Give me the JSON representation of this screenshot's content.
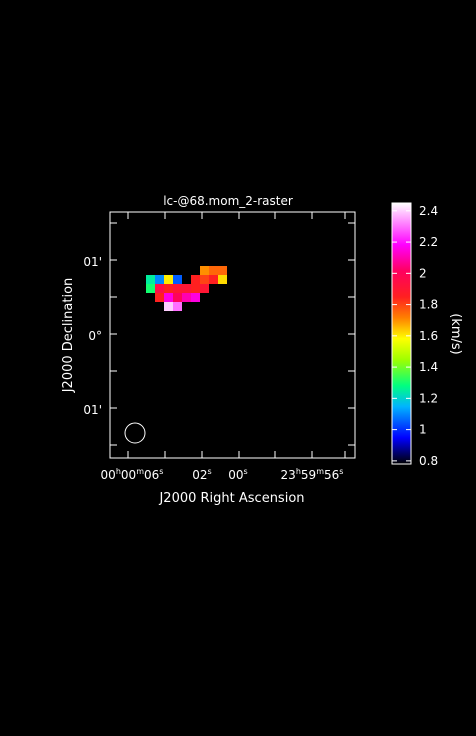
{
  "chart_data": {
    "type": "heatmap",
    "title": "lc-@68.mom_2-raster",
    "xlabel": "J2000 Right Ascension",
    "ylabel": "J2000 Declination",
    "xticks": [
      {
        "h": "00",
        "hu": "h",
        "m": "00",
        "mu": "m",
        "s": "06",
        "su": "s"
      },
      {
        "s": "02",
        "su": "s"
      },
      {
        "s": "00",
        "su": "s"
      },
      {
        "h": "23",
        "hu": "h",
        "m": "59",
        "mu": "m",
        "s": "56",
        "su": "s"
      }
    ],
    "yticks": [
      "01'",
      "0°",
      "01'"
    ],
    "colorbar": {
      "label": "(km/s)",
      "ticks": [
        "2.4",
        "2.2",
        "2",
        "1.8",
        "1.6",
        "1.4",
        "1.2",
        "1",
        "0.8"
      ],
      "range": [
        0.78,
        2.45
      ]
    },
    "pixels": [
      {
        "col": 0,
        "row": 0,
        "v": 1.25
      },
      {
        "col": 1,
        "row": 0,
        "v": 1.1
      },
      {
        "col": 2,
        "row": 0,
        "v": 1.6
      },
      {
        "col": 3,
        "row": 0,
        "v": 1.05
      },
      {
        "col": 0,
        "row": 1,
        "v": 1.3
      },
      {
        "col": 1,
        "row": 1,
        "v": 1.95
      },
      {
        "col": 2,
        "row": 1,
        "v": 1.85
      },
      {
        "col": 3,
        "row": 1,
        "v": 1.9
      },
      {
        "col": 4,
        "row": 1,
        "v": 1.9
      },
      {
        "col": 5,
        "row": 1,
        "v": 1.85
      },
      {
        "col": 6,
        "row": 1,
        "v": 1.9
      },
      {
        "col": 1,
        "row": 2,
        "v": 1.85
      },
      {
        "col": 2,
        "row": 2,
        "v": 2.15
      },
      {
        "col": 3,
        "row": 2,
        "v": 2.0
      },
      {
        "col": 4,
        "row": 2,
        "v": 2.1
      },
      {
        "col": 5,
        "row": 2,
        "v": 2.15
      },
      {
        "col": 2,
        "row": 3,
        "v": 2.4
      },
      {
        "col": 3,
        "row": 3,
        "v": 2.3
      },
      {
        "col": 5,
        "row": 0,
        "v": 1.85
      },
      {
        "col": 6,
        "row": 0,
        "v": 1.8
      },
      {
        "col": 6,
        "row": -1,
        "v": 1.7
      },
      {
        "col": 7,
        "row": -1,
        "v": 1.75
      },
      {
        "col": 8,
        "row": -1,
        "v": 1.75
      },
      {
        "col": 7,
        "row": 0,
        "v": 1.85
      },
      {
        "col": 8,
        "row": 0,
        "v": 1.62
      }
    ],
    "grid": false
  }
}
